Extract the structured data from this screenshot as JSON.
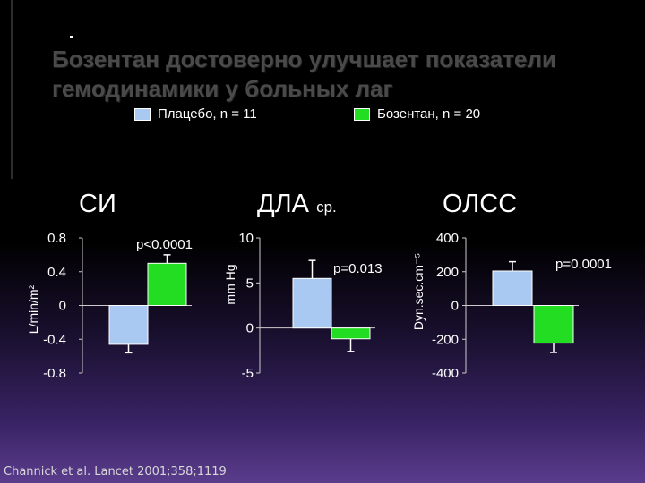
{
  "slide": {
    "title_line1": "Бозентан достоверно улучшает показатели",
    "title_line2": "гемодинамики у больных лаг",
    "citation": "Channick et al. Lancet 2001;358;1119"
  },
  "legend": [
    {
      "label": "Плацебо, n = 11",
      "color": "#a9c8f2"
    },
    {
      "label": "Бозентан, n = 20",
      "color": "#22dd22"
    }
  ],
  "chart_data": [
    {
      "type": "bar",
      "title": "СИ",
      "ylabel": "L/min/m²",
      "yticks": [
        "0.8",
        "0.4",
        "0",
        "-0.4",
        "-0.8"
      ],
      "tick_values": [
        0.8,
        0.4,
        0,
        -0.4,
        -0.8
      ],
      "ylim": [
        -0.8,
        0.8
      ],
      "annotation": "p<0.0001",
      "series": [
        {
          "name": "Плацебо, n = 11",
          "values": [
            -0.46
          ],
          "error": [
            0.1
          ]
        },
        {
          "name": "Бозентан, n = 20",
          "values": [
            0.5
          ],
          "error": [
            0.1
          ]
        }
      ]
    },
    {
      "type": "bar",
      "title": "ДЛА",
      "title_sub": "ср.",
      "ylabel": "mm Hg",
      "yticks": [
        "10",
        "5",
        "0",
        "-5"
      ],
      "tick_values": [
        10,
        5,
        0,
        -5
      ],
      "ylim": [
        -5,
        10
      ],
      "annotation": "p=0.013",
      "series": [
        {
          "name": "Плацебо, n = 11",
          "values": [
            5.5
          ],
          "error": [
            2.0
          ]
        },
        {
          "name": "Бозентан, n = 20",
          "values": [
            -1.2
          ],
          "error": [
            1.4
          ]
        }
      ]
    },
    {
      "type": "bar",
      "title": "ОЛСС",
      "ylabel": "Dyn.sec.cm⁻⁵",
      "yticks": [
        "400",
        "200",
        "0",
        "-200",
        "-400"
      ],
      "tick_values": [
        400,
        200,
        0,
        -200,
        -400
      ],
      "ylim": [
        -400,
        400
      ],
      "annotation": "p=0.0001",
      "series": [
        {
          "name": "Плацебо, n = 11",
          "values": [
            204
          ],
          "error": [
            55
          ]
        },
        {
          "name": "Бозентан, n = 20",
          "values": [
            -223
          ],
          "error": [
            55
          ]
        }
      ]
    }
  ]
}
